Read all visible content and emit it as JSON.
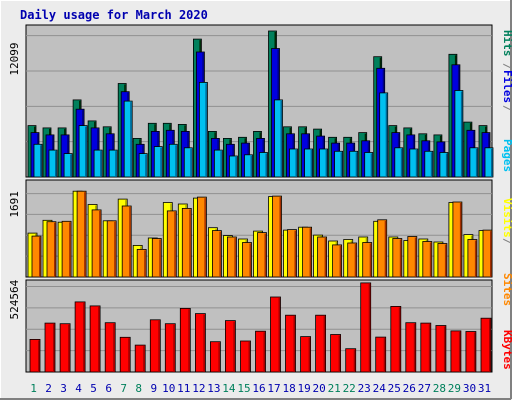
{
  "title": "Daily usage for March 2020",
  "colors": {
    "bg": "#ECECEC",
    "panel": "#C0C0C0",
    "title": "#0000B0",
    "hits": "#00805C",
    "files": "#0000E0",
    "pages": "#00C0F0",
    "visits": "#FFFF00",
    "sites": "#FF8800",
    "kbytes": "#FF0000",
    "weekend": "#00805C",
    "weekday": "#0000B0"
  },
  "right_labels": {
    "pages": "Pages",
    "files": "Files",
    "hits": "Hits",
    "sites": "Sites",
    "visits": "Visits",
    "kbytes": "KBytes",
    "sep": "/"
  },
  "chart_data": {
    "type": "bar",
    "title": "Daily usage for March 2020",
    "categories": [
      "1",
      "2",
      "3",
      "4",
      "5",
      "6",
      "7",
      "8",
      "9",
      "10",
      "11",
      "12",
      "13",
      "14",
      "15",
      "16",
      "17",
      "18",
      "19",
      "20",
      "21",
      "22",
      "23",
      "24",
      "25",
      "26",
      "27",
      "28",
      "29",
      "30",
      "31"
    ],
    "weekend_days": [
      "1",
      "7",
      "8",
      "14",
      "15",
      "21",
      "22",
      "28",
      "29"
    ],
    "panels": [
      {
        "id": "hits_files_pages",
        "ymax": 12099,
        "ymax_label": "12099",
        "series": [
          {
            "name": "Hits",
            "color": "#00805C",
            "values": [
              4400,
              4200,
              4200,
              6600,
              4800,
              4300,
              8000,
              3300,
              4600,
              4600,
              4500,
              11800,
              3900,
              3300,
              3400,
              3900,
              12500,
              4300,
              4300,
              4100,
              3400,
              3400,
              3800,
              10300,
              4400,
              4200,
              3700,
              3600,
              10500,
              4700,
              4400
            ]
          },
          {
            "name": "Files",
            "color": "#0000E0",
            "values": [
              3800,
              3600,
              3600,
              5800,
              4200,
              3700,
              7300,
              2800,
              3900,
              4000,
              3900,
              10700,
              3300,
              2800,
              2900,
              3300,
              11000,
              3700,
              3700,
              3500,
              2900,
              2900,
              3100,
              9300,
              3800,
              3600,
              3100,
              3000,
              9600,
              4000,
              3800
            ]
          },
          {
            "name": "Pages",
            "color": "#00C0F0",
            "values": [
              2800,
              2300,
              2000,
              4400,
              2300,
              2300,
              6500,
              2000,
              2600,
              2800,
              2500,
              8100,
              2300,
              1800,
              1900,
              2100,
              6600,
              2400,
              2400,
              2400,
              2200,
              2200,
              2100,
              7200,
              2500,
              2400,
              2200,
              2100,
              7400,
              2500,
              2500
            ]
          }
        ]
      },
      {
        "id": "visits_sites",
        "ymax": 1691,
        "ymax_label": "1691",
        "series": [
          {
            "name": "Visits",
            "color": "#FFFF00",
            "values": [
              890,
              1150,
              1110,
              1740,
              1470,
              1140,
              1580,
              640,
              790,
              1510,
              1480,
              1600,
              1000,
              840,
              770,
              930,
              1630,
              950,
              1010,
              850,
              730,
              760,
              810,
              1130,
              810,
              740,
              770,
              710,
              1510,
              860,
              940
            ]
          },
          {
            "name": "Sites",
            "color": "#FF8800",
            "values": [
              830,
              1120,
              1130,
              1740,
              1360,
              1140,
              1440,
              560,
              780,
              1340,
              1390,
              1620,
              940,
              810,
              700,
              900,
              1640,
              960,
              1010,
              810,
              650,
              690,
              700,
              1160,
              780,
              820,
              720,
              680,
              1520,
              760,
              950
            ]
          }
        ]
      },
      {
        "id": "kbytes",
        "ymax": 524564,
        "ymax_label": "524564",
        "series": [
          {
            "name": "KBytes",
            "color": "#FF0000",
            "values": [
              200000,
              300000,
              296000,
              430000,
              405000,
              302000,
              213000,
              165000,
              320000,
              296000,
              390000,
              358000,
              186000,
              315000,
              190000,
              250000,
              460000,
              348000,
              217000,
              348000,
              230000,
              143000,
              546000,
              214000,
              402000,
              302000,
              300000,
              285000,
              252000,
              248000,
              330000
            ]
          }
        ]
      }
    ]
  }
}
